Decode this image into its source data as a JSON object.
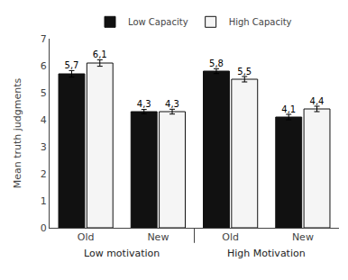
{
  "chart_data": {
    "type": "bar",
    "categories": [
      "Old",
      "New",
      "Old",
      "New"
    ],
    "groups": [
      "Low motivation",
      "Low motivation",
      "High Motivation",
      "High Motivation"
    ],
    "series": [
      {
        "name": "Low Capacity",
        "color": "#111111",
        "values": [
          5.7,
          4.3,
          5.8,
          4.1
        ],
        "errors": [
          0.12,
          0.08,
          0.09,
          0.1
        ],
        "value_labels": [
          "5,7",
          "4,3",
          "5,8",
          "4,1"
        ]
      },
      {
        "name": "High Capacity",
        "color": "#f5f5f5",
        "values": [
          6.1,
          4.3,
          5.5,
          4.4
        ],
        "errors": [
          0.12,
          0.09,
          0.1,
          0.1
        ],
        "value_labels": [
          "6,1",
          "4,3",
          "5,5",
          "4,4"
        ]
      }
    ],
    "ylabel": "Mean truth judgments",
    "ylim": [
      0,
      7
    ],
    "yticks": [
      0,
      1,
      2,
      3,
      4,
      5,
      6,
      7
    ],
    "grid": false,
    "legend": "top",
    "data_labels": true
  }
}
